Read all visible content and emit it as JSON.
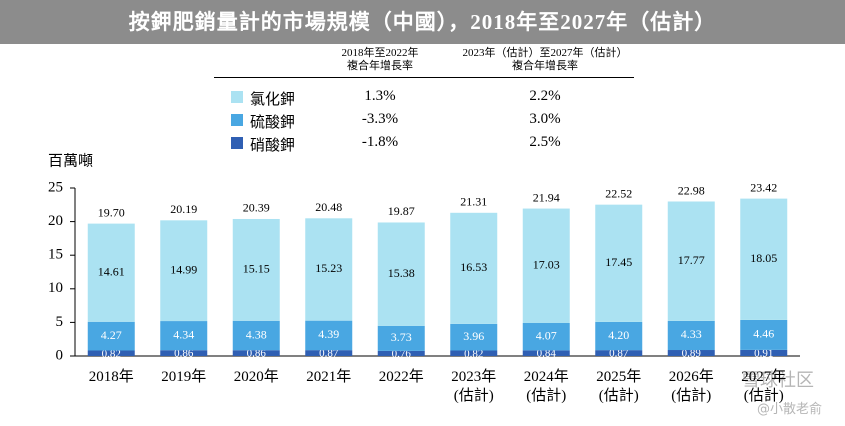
{
  "title": "按鉀肥銷量計的市場規模（中國），2018年至2027年（估計）",
  "legend_table": {
    "headers": [
      "2018年至2022年\n複合年增長率",
      "2023年（估計）至2027年（估計）\n複合年增長率"
    ],
    "rows": [
      [
        "1.3%",
        "2.2%"
      ],
      [
        "-3.3%",
        "3.0%"
      ],
      [
        "-1.8%",
        "2.5%"
      ]
    ]
  },
  "watermark": [
    "雪球社区",
    "@小散老俞"
  ],
  "chart_data": {
    "type": "stacked_bar",
    "y_label": "百萬噸",
    "categories": [
      "2018年",
      "2019年",
      "2020年",
      "2021年",
      "2022年",
      "2023年\n(估計)",
      "2024年\n(估計)",
      "2025年\n(估計)",
      "2026年\n(估計)",
      "2027年\n(估計)"
    ],
    "series": [
      {
        "name": "硝酸鉀",
        "color": "#2f5fb3",
        "values": [
          0.82,
          0.86,
          0.86,
          0.87,
          0.76,
          0.82,
          0.84,
          0.87,
          0.89,
          0.91
        ],
        "value_labels": [
          "0.82",
          "0.86",
          "0.86",
          "0.87",
          "0.76",
          "0.82",
          "0.84",
          "0.87",
          "0.89",
          "0.91"
        ]
      },
      {
        "name": "硫酸鉀",
        "color": "#49a7e2",
        "values": [
          4.27,
          4.34,
          4.38,
          4.39,
          3.73,
          3.96,
          4.07,
          4.2,
          4.33,
          4.46
        ],
        "value_labels": [
          "4.27",
          "4.34",
          "4.38",
          "4.39",
          "3.73",
          "3.96",
          "4.07",
          "4.20",
          "4.33",
          "4.46"
        ]
      },
      {
        "name": "氯化鉀",
        "color": "#abe2f2",
        "values": [
          14.61,
          14.99,
          15.15,
          15.23,
          15.38,
          16.53,
          17.03,
          17.45,
          17.77,
          18.05
        ],
        "value_labels": [
          "14.61",
          "14.99",
          "15.15",
          "15.23",
          "15.38",
          "16.53",
          "17.03",
          "17.45",
          "17.77",
          "18.05"
        ]
      }
    ],
    "totals": [
      19.7,
      20.19,
      20.39,
      20.48,
      19.87,
      21.31,
      21.94,
      22.52,
      22.98,
      23.42
    ],
    "total_labels": [
      "19.70",
      "20.19",
      "20.39",
      "20.48",
      "19.87",
      "21.31",
      "21.94",
      "22.52",
      "22.98",
      "23.42"
    ],
    "ylim": [
      0,
      25
    ],
    "yticks": [
      0,
      5,
      10,
      15,
      20,
      25
    ],
    "grid": false
  }
}
